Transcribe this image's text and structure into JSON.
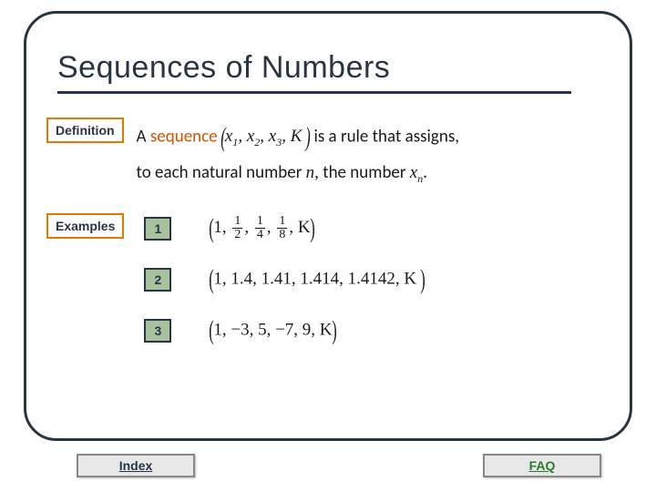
{
  "title": "Sequences of Numbers",
  "definition": {
    "label": "Definition",
    "pre": "A ",
    "highlight": "sequence  ",
    "tuple_open": "(",
    "tuple_items": "x",
    "tuple_text": "x₁, x₂, x₃, K",
    "tuple_close": ")",
    "post1": "  is a rule that assigns,",
    "line2_pre": "to each natural number  ",
    "line2_n": "n,",
    "line2_post": "  the number ",
    "line2_xn": "xₙ",
    "line2_end": "."
  },
  "examples": {
    "label": "Examples",
    "items": [
      {
        "num": "1",
        "open": "(",
        "html": "1, <span class=\"frac\"><span class=\"num\">1</span><span class=\"den\">2</span></span>, <span class=\"frac\"><span class=\"num\">1</span><span class=\"den\">4</span></span>, <span class=\"frac\"><span class=\"num\">1</span><span class=\"den\">8</span></span>, K",
        "close": ")"
      },
      {
        "num": "2",
        "open": "(",
        "html": "1, 1.4, 1.41, 1.414, 1.4142, K",
        "close": ")"
      },
      {
        "num": "3",
        "open": "(",
        "html": "1, −3, 5, −7, 9, K",
        "close": ")"
      }
    ]
  },
  "nav": {
    "index": "Index",
    "faq": "FAQ"
  },
  "colors": {
    "frame": "#2a3544",
    "accent": "#e07a00",
    "numbox_bg": "#a8c2a0",
    "button_bg": "#e8e8e8",
    "faq_color": "#2a7a2a"
  }
}
